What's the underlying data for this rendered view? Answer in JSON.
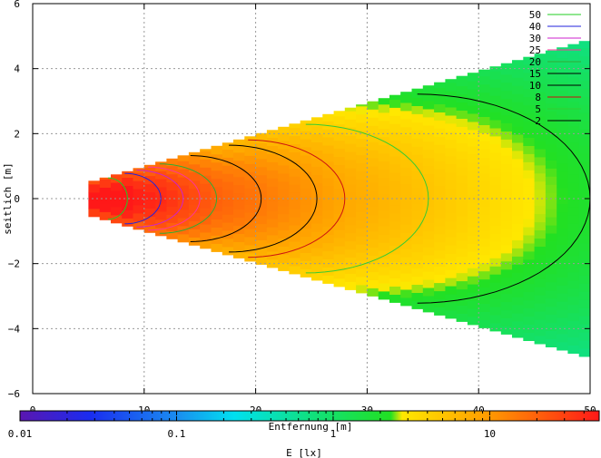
{
  "chart_data": {
    "type": "heatmap",
    "title": "",
    "xlabel": "Entfernung [m]",
    "ylabel": "seitlich [m]",
    "xlim": [
      0,
      50
    ],
    "ylim": [
      -6,
      6
    ],
    "x_ticks": [
      "0",
      "10",
      "20",
      "30",
      "40",
      "50"
    ],
    "y_ticks": [
      "6",
      "4",
      "2",
      "0",
      "-2",
      "-4",
      "-6"
    ],
    "grid": true,
    "legend_position": "top-right",
    "colorbar": {
      "label": "E [lx]",
      "scale": "log",
      "range": [
        0.01,
        50
      ],
      "ticks": [
        "0.01",
        "0.1",
        "1",
        "10"
      ]
    },
    "illuminated_area": {
      "x_start": 5,
      "x_end": 50,
      "half_width_at_start": 0.5,
      "half_width_at_end": 4.9
    },
    "contours": [
      {
        "name": "50",
        "color": "#22cc22"
      },
      {
        "name": "40",
        "color": "#2222dd"
      },
      {
        "name": "30",
        "color": "#cc22cc"
      },
      {
        "name": "25",
        "color": "#ff3399"
      },
      {
        "name": "20",
        "color": "#33aa33"
      },
      {
        "name": "15",
        "color": "#000000"
      },
      {
        "name": "10",
        "color": "#000000"
      },
      {
        "name": "8",
        "color": "#cc1111"
      },
      {
        "name": "5",
        "color": "#33cc33"
      },
      {
        "name": "2",
        "color": "#000000"
      }
    ],
    "contour_extents_x": {
      "50": 8.5,
      "40": 11.5,
      "30": 13.5,
      "25": 15,
      "20": 16.5,
      "15": 20.5,
      "10": 25.5,
      "8": 28,
      "5": 35.5,
      "2": 50
    }
  }
}
